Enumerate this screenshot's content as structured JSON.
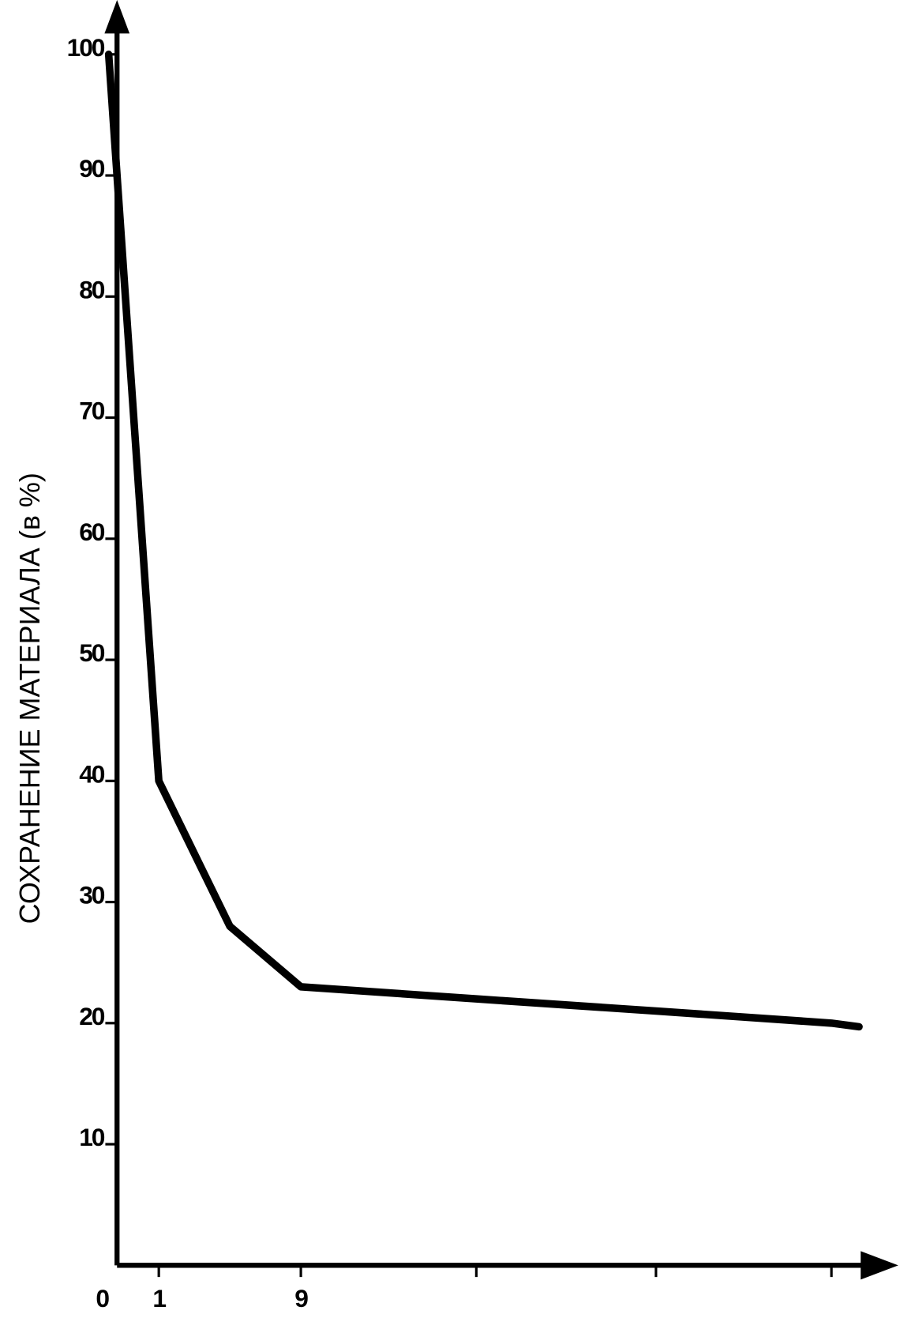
{
  "chart_data": {
    "type": "line",
    "y_label": "СОХРАНЕНИЕ МАТЕРИАЛА (в %)",
    "categories": [
      "0",
      "1",
      null,
      "9",
      null,
      null,
      null,
      null
    ],
    "series": [
      {
        "name": null,
        "color": "#000000",
        "values": [
          100,
          40,
          28,
          23,
          22,
          21,
          20,
          19.7
        ]
      }
    ],
    "ylim": [
      0,
      100
    ],
    "yticks": [
      10,
      20,
      30,
      40,
      50,
      60,
      70,
      80,
      90,
      100
    ]
  }
}
